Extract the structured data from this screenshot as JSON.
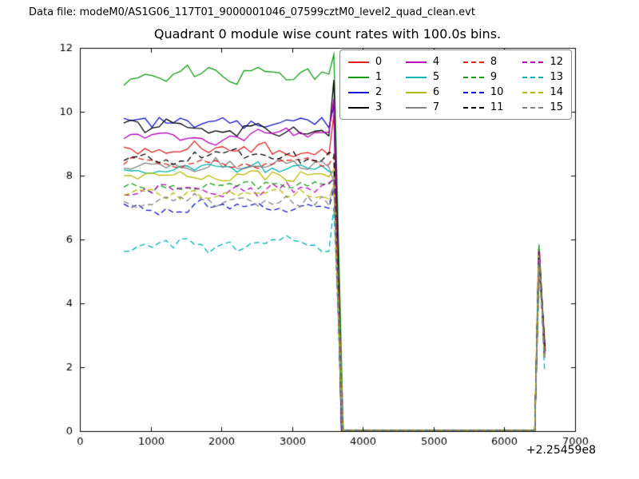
{
  "header": {
    "data_file": "Data file: modeM0/AS1G06_117T01_9000001046_07599cztM0_level2_quad_clean.evt"
  },
  "chart_data": {
    "type": "line",
    "title": "Quadrant 0 module wise count rates with 100.0s bins.",
    "xlabel": "",
    "ylabel": "",
    "grid": false,
    "legend": {
      "position": "upper right",
      "columns": 4
    },
    "x_axis": {
      "min": 0,
      "max": 7000,
      "ticks": [
        0,
        1000,
        2000,
        3000,
        4000,
        5000,
        6000,
        7000
      ],
      "offset_label": "+2.25459e8"
    },
    "y_axis": {
      "min": 0,
      "max": 12,
      "ticks": [
        0,
        2,
        4,
        6,
        8,
        10,
        12
      ]
    },
    "structure": {
      "bin_width_s": 100,
      "plateau_start_x": 620,
      "plateau_end_x": 3520,
      "pre_drop_peak_x": 3590,
      "drop_to_zero_x": 3710,
      "flare_start_x": 6430,
      "flare_peak_x": 6490,
      "flare_end_x": 6570
    },
    "series": [
      {
        "label": "0",
        "color": "#dd2222",
        "linestyle": "solid",
        "base": 8.8,
        "amp": 0.3,
        "pre_drop_peak": 9.9,
        "flare_peak": 5.6,
        "flare_end": 2.5
      },
      {
        "label": "1",
        "color": "#0f9b0f",
        "linestyle": "solid",
        "base": 11.1,
        "amp": 0.35,
        "pre_drop_peak": 11.8,
        "flare_peak": 5.8,
        "flare_end": 2.6
      },
      {
        "label": "2",
        "color": "#1515cc",
        "linestyle": "solid",
        "base": 9.7,
        "amp": 0.3,
        "pre_drop_peak": 10.2,
        "flare_peak": 5.6,
        "flare_end": 2.5
      },
      {
        "label": "3",
        "color": "#000000",
        "linestyle": "solid",
        "base": 9.5,
        "amp": 0.32,
        "pre_drop_peak": 11.0,
        "flare_peak": 5.7,
        "flare_end": 2.5
      },
      {
        "label": "4",
        "color": "#b800b8",
        "linestyle": "solid",
        "base": 9.3,
        "amp": 0.3,
        "pre_drop_peak": 10.4,
        "flare_peak": 5.6,
        "flare_end": 2.4
      },
      {
        "label": "5",
        "color": "#00b3b3",
        "linestyle": "solid",
        "base": 8.2,
        "amp": 0.25,
        "pre_drop_peak": 8.1,
        "flare_peak": 5.5,
        "flare_end": 2.4
      },
      {
        "label": "6",
        "color": "#b8b800",
        "linestyle": "solid",
        "base": 7.9,
        "amp": 0.3,
        "pre_drop_peak": 8.2,
        "flare_peak": 5.5,
        "flare_end": 2.4
      },
      {
        "label": "7",
        "color": "#808080",
        "linestyle": "solid",
        "base": 8.3,
        "amp": 0.3,
        "pre_drop_peak": 7.8,
        "flare_peak": 5.4,
        "flare_end": 2.4
      },
      {
        "label": "8",
        "color": "#dd2222",
        "linestyle": "dashed",
        "base": 8.4,
        "amp": 0.25,
        "pre_drop_peak": 8.6,
        "flare_peak": 5.5,
        "flare_end": 2.4
      },
      {
        "label": "9",
        "color": "#0f9b0f",
        "linestyle": "dashed",
        "base": 7.7,
        "amp": 0.25,
        "pre_drop_peak": 7.9,
        "flare_peak": 5.4,
        "flare_end": 2.3
      },
      {
        "label": "10",
        "color": "#1515cc",
        "linestyle": "dashed",
        "base": 7.0,
        "amp": 0.28,
        "pre_drop_peak": 7.6,
        "flare_peak": 5.3,
        "flare_end": 2.3
      },
      {
        "label": "11",
        "color": "#000000",
        "linestyle": "dashed",
        "base": 8.6,
        "amp": 0.3,
        "pre_drop_peak": 8.7,
        "flare_peak": 5.5,
        "flare_end": 2.4
      },
      {
        "label": "12",
        "color": "#b800b8",
        "linestyle": "dashed",
        "base": 7.5,
        "amp": 0.25,
        "pre_drop_peak": 7.9,
        "flare_peak": 5.3,
        "flare_end": 2.3
      },
      {
        "label": "13",
        "color": "#00b3b3",
        "linestyle": "dashed",
        "base": 5.8,
        "amp": 0.35,
        "pre_drop_peak": 7.0,
        "flare_peak": 5.2,
        "flare_end": 1.9
      },
      {
        "label": "14",
        "color": "#b8b800",
        "linestyle": "dashed",
        "base": 7.4,
        "amp": 0.25,
        "pre_drop_peak": 7.7,
        "flare_peak": 5.3,
        "flare_end": 2.3
      },
      {
        "label": "15",
        "color": "#808080",
        "linestyle": "dashed",
        "base": 7.2,
        "amp": 0.3,
        "pre_drop_peak": 7.8,
        "flare_peak": 5.3,
        "flare_end": 2.3
      }
    ]
  }
}
